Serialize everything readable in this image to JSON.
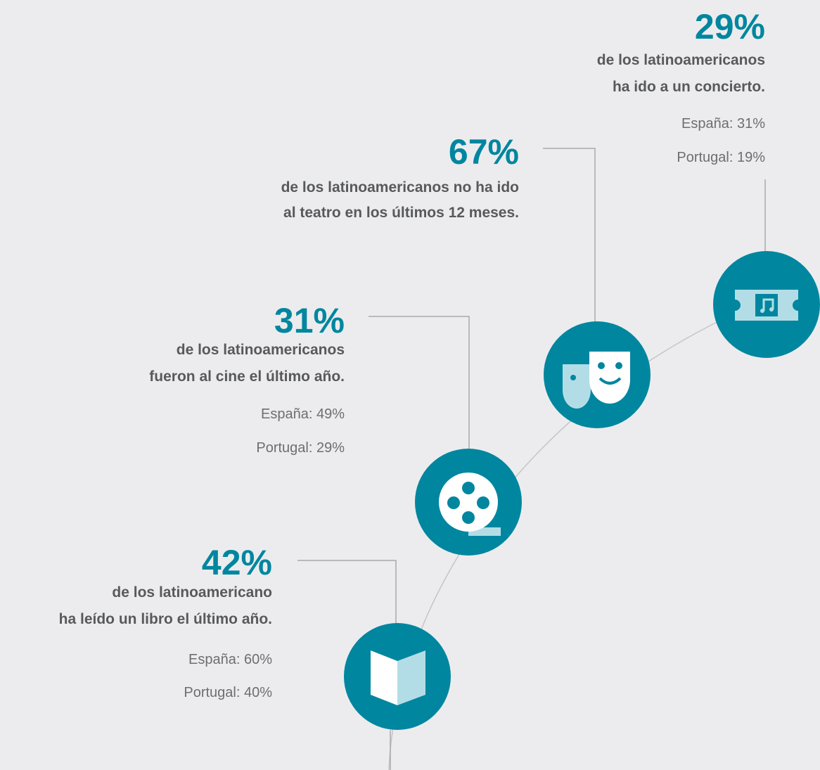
{
  "items": [
    {
      "percent": "29%",
      "lines": [
        "de los latinoamericanos",
        "ha ido a un concierto."
      ],
      "comparisons": [
        "España: 31%",
        "Portugal: 19%"
      ]
    },
    {
      "percent": "67%",
      "lines": [
        "de los latinoamericanos no ha ido",
        "al teatro en los últimos 12 meses."
      ],
      "comparisons": []
    },
    {
      "percent": "31%",
      "lines": [
        "de los latinoamericanos",
        "fueron al cine el último año."
      ],
      "comparisons": [
        "España: 49%",
        "Portugal: 29%"
      ]
    },
    {
      "percent": "42%",
      "lines": [
        "de los latinoamericano",
        "ha leído un libro el último año."
      ],
      "comparisons": [
        "España: 60%",
        "Portugal: 40%"
      ]
    }
  ]
}
